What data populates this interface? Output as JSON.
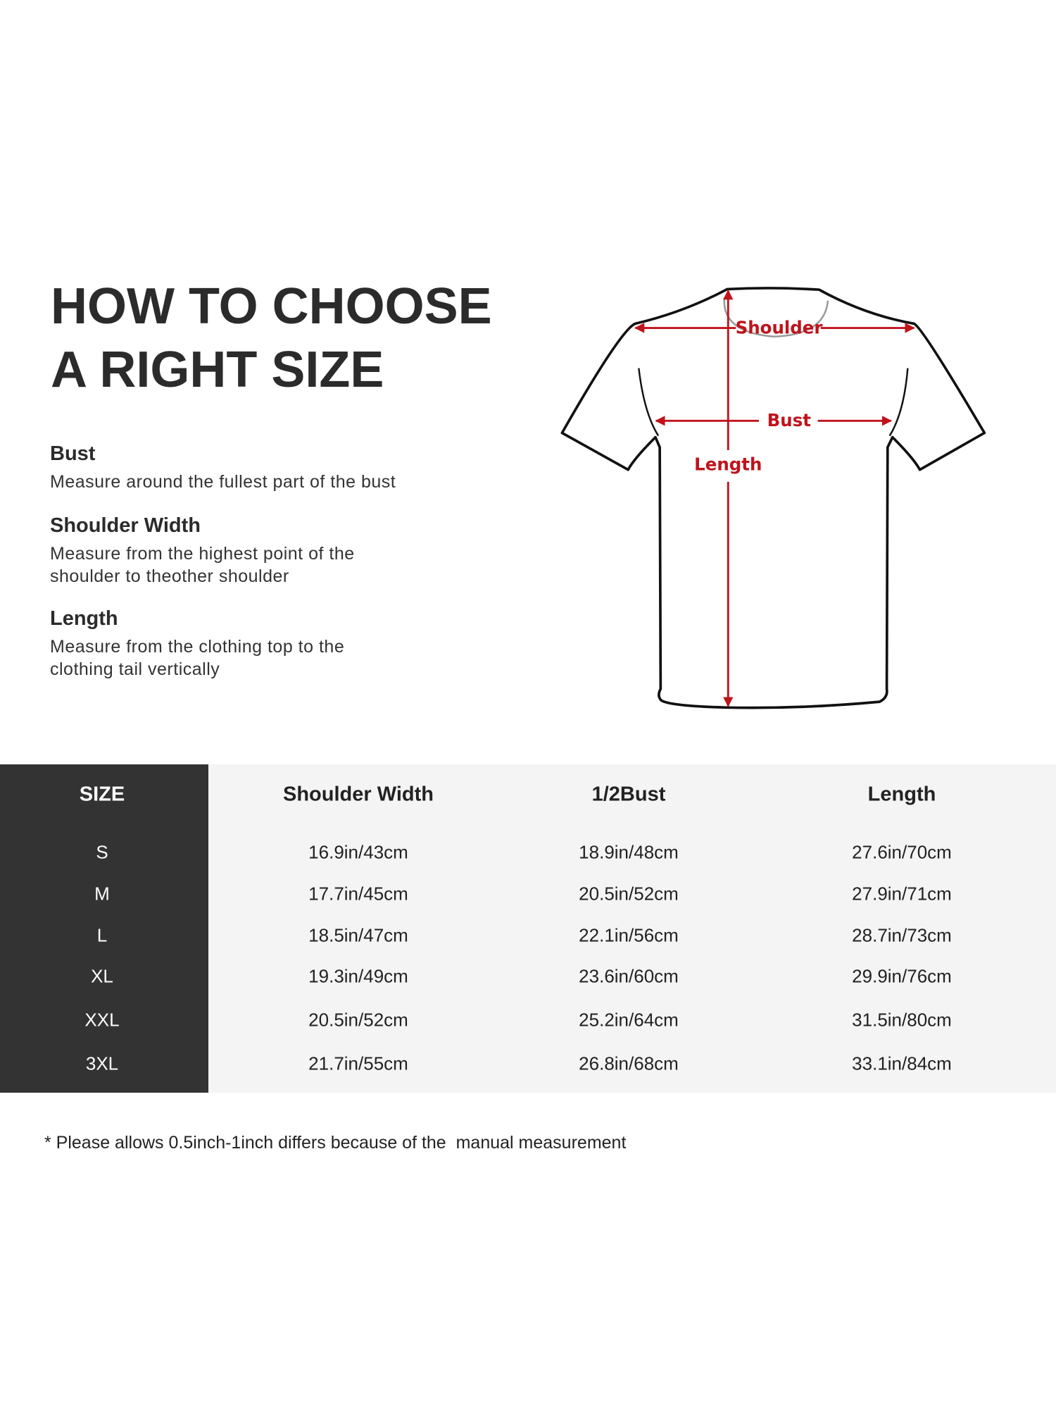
{
  "title": {
    "line1": "HOW TO CHOOSE",
    "line2": "A RIGHT SIZE"
  },
  "guides": [
    {
      "heading": "Bust",
      "lines": [
        "Measure around the fullest part of the bust"
      ]
    },
    {
      "heading": "Shoulder Width",
      "lines": [
        "Measure from the highest point of the",
        "shoulder to theother shoulder"
      ]
    },
    {
      "heading": "Length",
      "lines": [
        "Measure from the clothing top to the",
        "clothing tail vertically"
      ]
    }
  ],
  "diagram": {
    "labels": {
      "shoulder": "Shoulder",
      "bust": "Bust",
      "length": "Length"
    },
    "accent_color": "#c0131b"
  },
  "table": {
    "headers": [
      "SIZE",
      "Shoulder Width",
      "1/2Bust",
      "Length"
    ],
    "rows": [
      [
        "S",
        "16.9in/43cm",
        "18.9in/48cm",
        "27.6in/70cm"
      ],
      [
        "M",
        "17.7in/45cm",
        "20.5in/52cm",
        "27.9in/71cm"
      ],
      [
        "L",
        "18.5in/47cm",
        "22.1in/56cm",
        "28.7in/73cm"
      ],
      [
        "XL",
        "19.3in/49cm",
        "23.6in/60cm",
        "29.9in/76cm"
      ],
      [
        "XXL",
        "20.5in/52cm",
        "25.2in/64cm",
        "31.5in/80cm"
      ],
      [
        "3XL",
        "21.7in/55cm",
        "26.8in/68cm",
        "33.1in/84cm"
      ]
    ],
    "size_column_color": "#333333",
    "background_color": "#f4f4f4"
  },
  "footnote": "* Please allows 0.5inch-1inch differs because of the  manual measurement"
}
